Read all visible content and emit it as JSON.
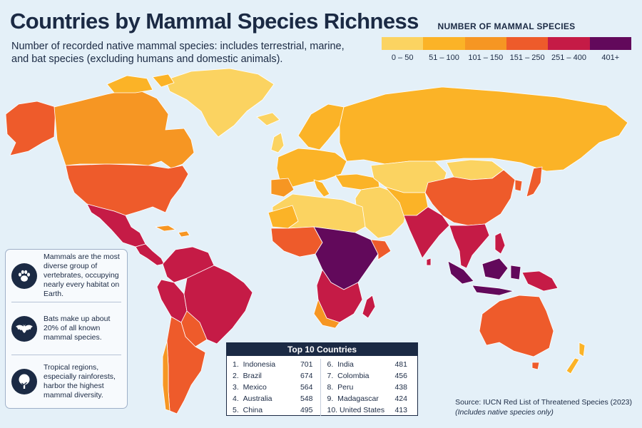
{
  "title": "Countries by Mammal Species Richness",
  "subtitle": "Number of recorded native mammal species: includes terrestrial, marine, and bat species (excluding humans and domestic animals).",
  "legend": {
    "title": "NUMBER OF MAMMAL SPECIES",
    "bins": [
      {
        "label": "0 – 50",
        "color": "#fbd361"
      },
      {
        "label": "51 – 100",
        "color": "#fbb327"
      },
      {
        "label": "101 – 150",
        "color": "#f69623"
      },
      {
        "label": "151 – 250",
        "color": "#ee5b2b"
      },
      {
        "label": "251 – 400",
        "color": "#c51b46"
      },
      {
        "label": "401+",
        "color": "#62095b"
      }
    ]
  },
  "facts": [
    {
      "icon": "paw-print-icon",
      "text": "Mammals are the most diverse group of vertebrates, occupying nearly every habitat on Earth."
    },
    {
      "icon": "bat-icon",
      "text": "Bats make up about 20% of all known mammal species."
    },
    {
      "icon": "tree-icon",
      "text": "Tropical regions, especially rainforests, harbor the highest mammal diversity."
    }
  ],
  "top10": {
    "title": "Top 10 Countries",
    "rows": [
      {
        "rank": "1.",
        "country": "Indonesia",
        "value": "701"
      },
      {
        "rank": "2.",
        "country": "Brazil",
        "value": "674"
      },
      {
        "rank": "3.",
        "country": "Mexico",
        "value": "564"
      },
      {
        "rank": "4.",
        "country": "Australia",
        "value": "548"
      },
      {
        "rank": "5.",
        "country": "China",
        "value": "495"
      },
      {
        "rank": "6.",
        "country": "India",
        "value": "481"
      },
      {
        "rank": "7.",
        "country": "Colombia",
        "value": "456"
      },
      {
        "rank": "8.",
        "country": "Peru",
        "value": "438"
      },
      {
        "rank": "9.",
        "country": "Madagascar",
        "value": "424"
      },
      {
        "rank": "10.",
        "country": "United States",
        "value": "413"
      }
    ]
  },
  "source": "Source: IUCN Red List of Threatened Species (2023)",
  "source_note": "(Includes native species only)",
  "colors": {
    "ocean": "#e4f0f8",
    "navy": "#1b2a44",
    "border": "#ffffff"
  }
}
